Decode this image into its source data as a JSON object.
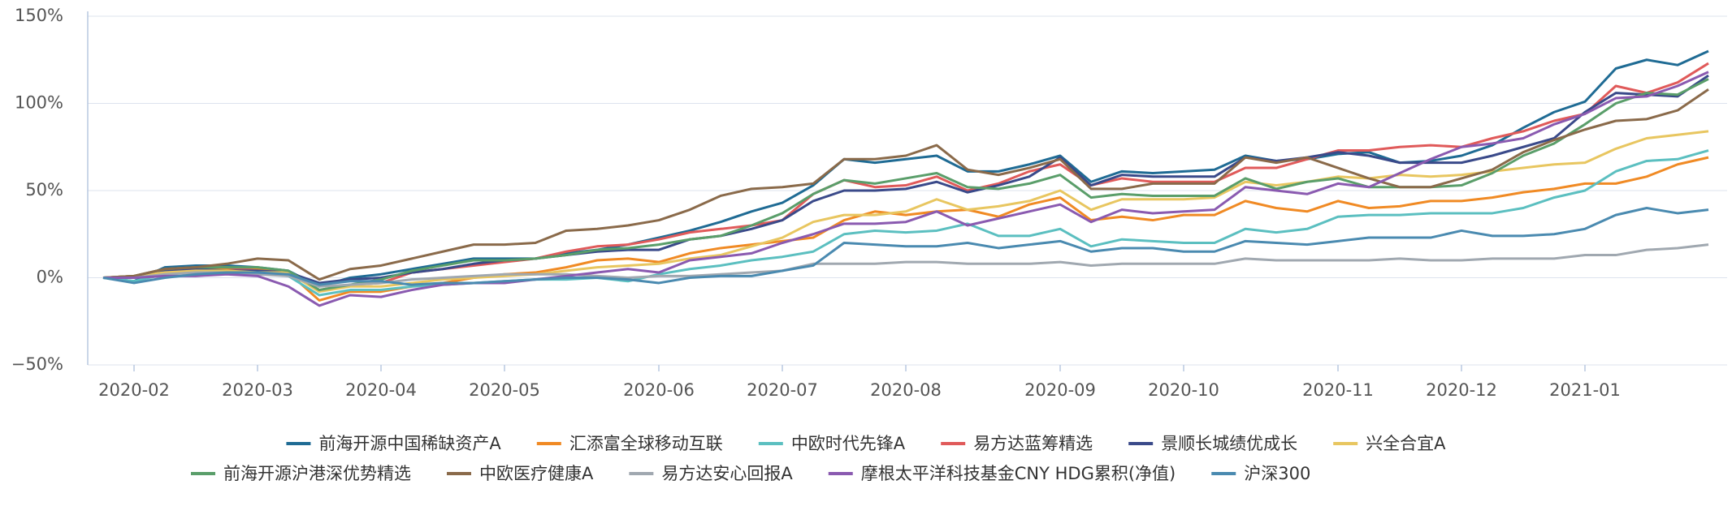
{
  "chart_data": {
    "type": "line",
    "categories": [
      null,
      "2020-02",
      null,
      null,
      null,
      "2020-03",
      null,
      null,
      null,
      "2020-04",
      null,
      null,
      null,
      "2020-05",
      null,
      null,
      null,
      null,
      "2020-06",
      null,
      null,
      null,
      "2020-07",
      null,
      null,
      null,
      "2020-08",
      null,
      null,
      null,
      null,
      "2020-09",
      null,
      null,
      null,
      "2020-10",
      null,
      null,
      null,
      null,
      "2020-11",
      null,
      null,
      null,
      "2020-12",
      null,
      null,
      null,
      "2021-01",
      null,
      null,
      null,
      null
    ],
    "ylim": [
      -50,
      150
    ],
    "yticks": [
      {
        "value": -50,
        "label": "−50%"
      },
      {
        "value": 0,
        "label": "0%"
      },
      {
        "value": 50,
        "label": "50%"
      },
      {
        "value": 100,
        "label": "100%"
      },
      {
        "value": 150,
        "label": "150%"
      }
    ],
    "grid": true,
    "legend": "bottom",
    "series": [
      {
        "name": "前海开源中国稀缺资产A",
        "color": "#1f6b94",
        "values": [
          0,
          -2,
          6,
          7,
          7,
          6,
          4,
          -5,
          0,
          2,
          5,
          8,
          11,
          11,
          11,
          14,
          16,
          19,
          23,
          27,
          32,
          38,
          43,
          53,
          68,
          66,
          68,
          70,
          61,
          61,
          65,
          70,
          55,
          61,
          60,
          61,
          62,
          70,
          67,
          68,
          71,
          72,
          66,
          67,
          70,
          76,
          86,
          95,
          101,
          120,
          125,
          122,
          130
        ]
      },
      {
        "name": "汇添富全球移动互联",
        "color": "#f08a24",
        "values": [
          0,
          1,
          4,
          5,
          5,
          5,
          3,
          -13,
          -8,
          -8,
          -5,
          -3,
          0,
          2,
          3,
          6,
          10,
          11,
          9,
          14,
          17,
          19,
          21,
          23,
          33,
          38,
          36,
          38,
          39,
          35,
          42,
          46,
          33,
          35,
          33,
          36,
          36,
          44,
          40,
          38,
          44,
          40,
          41,
          44,
          44,
          46,
          49,
          51,
          54,
          54,
          58,
          65,
          69
        ]
      },
      {
        "name": "中欧时代先锋A",
        "color": "#5bbfc0",
        "values": [
          0,
          -2,
          2,
          3,
          3,
          3,
          1,
          -10,
          -7,
          -7,
          -5,
          -4,
          -3,
          -2,
          -1,
          -1,
          0,
          -2,
          2,
          5,
          7,
          10,
          12,
          15,
          25,
          27,
          26,
          27,
          31,
          24,
          24,
          28,
          18,
          22,
          21,
          20,
          20,
          28,
          26,
          28,
          35,
          36,
          36,
          37,
          37,
          37,
          40,
          46,
          50,
          61,
          67,
          68,
          73
        ]
      },
      {
        "name": "易方达蓝筹精选",
        "color": "#e05a5a",
        "values": [
          0,
          1,
          5,
          6,
          6,
          4,
          3,
          -7,
          -4,
          -3,
          3,
          5,
          7,
          9,
          11,
          15,
          18,
          19,
          22,
          26,
          28,
          30,
          33,
          48,
          56,
          52,
          53,
          58,
          50,
          54,
          61,
          65,
          53,
          57,
          55,
          55,
          55,
          63,
          63,
          68,
          73,
          73,
          75,
          76,
          75,
          80,
          84,
          90,
          94,
          110,
          106,
          112,
          123
        ]
      },
      {
        "name": "景顺长城绩优成长",
        "color": "#3a4a8a",
        "values": [
          0,
          0,
          4,
          5,
          4,
          4,
          3,
          -3,
          -1,
          0,
          3,
          5,
          8,
          10,
          11,
          13,
          15,
          16,
          16,
          22,
          24,
          28,
          33,
          44,
          50,
          50,
          51,
          55,
          49,
          53,
          58,
          69,
          53,
          59,
          58,
          58,
          58,
          69,
          67,
          69,
          72,
          70,
          66,
          66,
          66,
          70,
          75,
          80,
          95,
          106,
          105,
          104,
          116
        ]
      },
      {
        "name": "兴全合宜A",
        "color": "#e8c660",
        "values": [
          0,
          1,
          3,
          4,
          4,
          3,
          3,
          -8,
          -5,
          -5,
          -3,
          -1,
          0,
          1,
          2,
          4,
          6,
          7,
          8,
          11,
          13,
          18,
          23,
          32,
          36,
          36,
          38,
          45,
          39,
          41,
          44,
          50,
          39,
          45,
          45,
          45,
          46,
          55,
          53,
          55,
          58,
          57,
          59,
          58,
          59,
          61,
          63,
          65,
          66,
          74,
          80,
          82,
          84
        ]
      },
      {
        "name": "前海开源沪港深优势精选",
        "color": "#5a9e6a",
        "values": [
          0,
          1,
          5,
          6,
          6,
          6,
          4,
          -7,
          -4,
          -1,
          4,
          7,
          10,
          10,
          11,
          13,
          16,
          17,
          19,
          22,
          24,
          30,
          37,
          48,
          56,
          54,
          57,
          60,
          52,
          51,
          54,
          59,
          46,
          48,
          47,
          47,
          47,
          57,
          51,
          55,
          57,
          52,
          52,
          52,
          53,
          60,
          70,
          77,
          88,
          100,
          106,
          105,
          114
        ]
      },
      {
        "name": "中欧医疗健康A",
        "color": "#8a6a4a",
        "values": [
          0,
          1,
          5,
          6,
          8,
          11,
          10,
          -1,
          5,
          7,
          11,
          15,
          19,
          19,
          20,
          27,
          28,
          30,
          33,
          39,
          47,
          51,
          52,
          54,
          68,
          68,
          70,
          76,
          62,
          59,
          63,
          68,
          51,
          51,
          54,
          54,
          54,
          69,
          66,
          69,
          63,
          57,
          52,
          52,
          57,
          62,
          72,
          79,
          85,
          90,
          91,
          96,
          108
        ]
      },
      {
        "name": "易方达安心回报A",
        "color": "#a0a8b0",
        "values": [
          0,
          0,
          2,
          3,
          3,
          2,
          1,
          -5,
          -4,
          -3,
          -1,
          0,
          1,
          2,
          2,
          2,
          1,
          0,
          1,
          1,
          2,
          3,
          4,
          8,
          8,
          8,
          9,
          9,
          8,
          8,
          8,
          9,
          7,
          8,
          8,
          8,
          8,
          11,
          10,
          10,
          10,
          10,
          11,
          10,
          10,
          11,
          11,
          11,
          13,
          13,
          16,
          17,
          19
        ]
      },
      {
        "name": "摩根太平洋科技基金CNY HDG累积(净值)",
        "color": "#8a5ab0",
        "values": [
          0,
          0,
          1,
          1,
          2,
          1,
          -5,
          -16,
          -10,
          -11,
          -7,
          -4,
          -3,
          -3,
          -1,
          1,
          3,
          5,
          3,
          10,
          12,
          14,
          20,
          25,
          31,
          31,
          32,
          38,
          30,
          34,
          38,
          42,
          32,
          39,
          37,
          38,
          39,
          52,
          50,
          48,
          54,
          52,
          60,
          68,
          75,
          77,
          80,
          88,
          94,
          103,
          104,
          110,
          118
        ]
      },
      {
        "name": "沪深300",
        "color": "#4a8ab0",
        "values": [
          0,
          -3,
          0,
          2,
          3,
          3,
          2,
          -4,
          -2,
          -2,
          -4,
          -3,
          -3,
          -2,
          -1,
          0,
          0,
          -1,
          -3,
          0,
          1,
          1,
          4,
          7,
          20,
          19,
          18,
          18,
          20,
          17,
          19,
          21,
          15,
          17,
          17,
          15,
          15,
          21,
          20,
          19,
          21,
          23,
          23,
          23,
          27,
          24,
          24,
          25,
          28,
          36,
          40,
          37,
          39
        ]
      }
    ]
  }
}
